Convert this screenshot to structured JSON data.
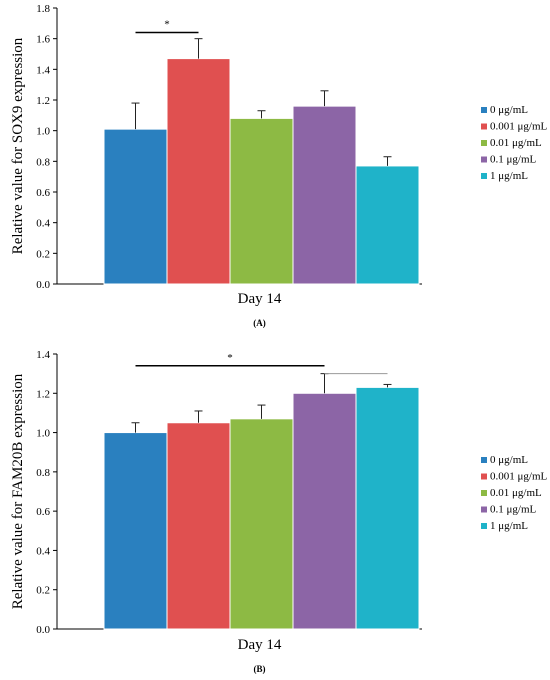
{
  "colors": [
    "#2a80bf",
    "#e05050",
    "#8dba44",
    "#8c65a6",
    "#1fb3c9"
  ],
  "chart_data": [
    {
      "type": "bar",
      "panel_label": "(A)",
      "ylabel": "Relative value for SOX9 expression",
      "categories": [
        "Day 14"
      ],
      "ylim": [
        0,
        1.8
      ],
      "yticks": [
        "0.0",
        "0.2",
        "0.4",
        "0.6",
        "0.8",
        "1.0",
        "1.2",
        "1.4",
        "1.6",
        "1.8"
      ],
      "series": [
        {
          "name": "0 μg/mL",
          "values": [
            1.01
          ],
          "error": [
            0.17
          ]
        },
        {
          "name": "0.001 μg/mL",
          "values": [
            1.47
          ],
          "error": [
            0.13
          ]
        },
        {
          "name": "0.01 μg/mL",
          "values": [
            1.08
          ],
          "error": [
            0.05
          ]
        },
        {
          "name": "0.1 μg/mL",
          "values": [
            1.16
          ],
          "error": [
            0.1
          ]
        },
        {
          "name": "1 μg/mL",
          "values": [
            0.77
          ],
          "error": [
            0.06
          ]
        }
      ],
      "significance": [
        {
          "from": 0,
          "to": 1,
          "y": 1.64,
          "label": "*"
        }
      ],
      "legend_position": "right"
    },
    {
      "type": "bar",
      "panel_label": "(B)",
      "ylabel": "Relative value for FAM20B expression",
      "categories": [
        "Day 14"
      ],
      "ylim": [
        0,
        1.4
      ],
      "yticks": [
        "0.0",
        "0.2",
        "0.4",
        "0.6",
        "0.8",
        "1.0",
        "1.2",
        "1.4"
      ],
      "series": [
        {
          "name": "0 μg/mL",
          "values": [
            1.0
          ],
          "error": [
            0.05
          ]
        },
        {
          "name": "0.001 μg/mL",
          "values": [
            1.05
          ],
          "error": [
            0.06
          ]
        },
        {
          "name": "0.01 μg/mL",
          "values": [
            1.07
          ],
          "error": [
            0.07
          ]
        },
        {
          "name": "0.1 μg/mL",
          "values": [
            1.2
          ],
          "error": [
            0.1
          ]
        },
        {
          "name": "1 μg/mL",
          "values": [
            1.23
          ],
          "error": [
            0.015
          ]
        }
      ],
      "significance": [
        {
          "from": 0,
          "to": 3,
          "y": 1.34,
          "label": "*"
        },
        {
          "from": 3,
          "to": 4,
          "y": 1.3,
          "label": ""
        }
      ],
      "legend_position": "right"
    }
  ]
}
